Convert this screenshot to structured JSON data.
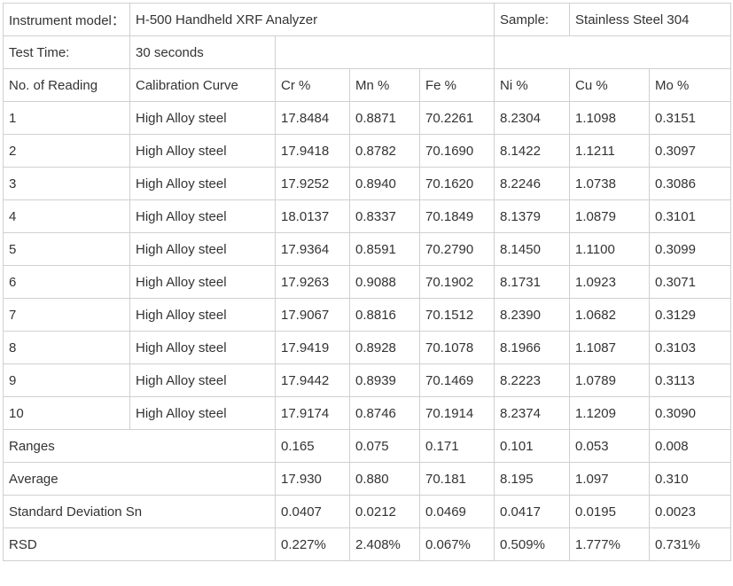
{
  "header": {
    "instrument_label": "Instrument model：",
    "instrument_value": "H-500 Handheld XRF Analyzer",
    "sample_label": "Sample:",
    "sample_value": "Stainless Steel 304",
    "test_time_label": "Test Time:",
    "test_time_value": "30 seconds"
  },
  "columns": [
    "No. of Reading",
    "Calibration Curve",
    "Cr %",
    "Mn %",
    "Fe %",
    "Ni %",
    "Cu %",
    "Mo %"
  ],
  "rows": [
    [
      "1",
      "High Alloy steel",
      "17.8484",
      "0.8871",
      "70.2261",
      "8.2304",
      "1.1098",
      "0.3151"
    ],
    [
      "2",
      "High Alloy steel",
      "17.9418",
      "0.8782",
      "70.1690",
      "8.1422",
      "1.1211",
      "0.3097"
    ],
    [
      "3",
      "High Alloy steel",
      "17.9252",
      "0.8940",
      "70.1620",
      "8.2246",
      "1.0738",
      "0.3086"
    ],
    [
      "4",
      "High Alloy steel",
      "18.0137",
      "0.8337",
      "70.1849",
      "8.1379",
      "1.0879",
      "0.3101"
    ],
    [
      "5",
      "High Alloy steel",
      "17.9364",
      "0.8591",
      "70.2790",
      "8.1450",
      "1.1100",
      "0.3099"
    ],
    [
      "6",
      "High Alloy steel",
      "17.9263",
      "0.9088",
      "70.1902",
      "8.1731",
      "1.0923",
      "0.3071"
    ],
    [
      "7",
      "High Alloy steel",
      "17.9067",
      "0.8816",
      "70.1512",
      "8.2390",
      "1.0682",
      "0.3129"
    ],
    [
      "8",
      "High Alloy steel",
      "17.9419",
      "0.8928",
      "70.1078",
      "8.1966",
      "1.1087",
      "0.3103"
    ],
    [
      "9",
      "High Alloy steel",
      "17.9442",
      "0.8939",
      "70.1469",
      "8.2223",
      "1.0789",
      "0.3113"
    ],
    [
      "10",
      "High Alloy steel",
      "17.9174",
      "0.8746",
      "70.1914",
      "8.2374",
      "1.1209",
      "0.3090"
    ]
  ],
  "summary": [
    {
      "label": "Ranges",
      "values": [
        "0.165",
        "0.075",
        "0.171",
        "0.101",
        "0.053",
        "0.008"
      ]
    },
    {
      "label": "Average",
      "values": [
        "17.930",
        "0.880",
        "70.181",
        "8.195",
        "1.097",
        "0.310"
      ]
    },
    {
      "label": "Standard Deviation Sn",
      "values": [
        "0.0407",
        "0.0212",
        "0.0469",
        "0.0417",
        "0.0195",
        "0.0023"
      ]
    },
    {
      "label": "RSD",
      "values": [
        "0.227%",
        "2.408%",
        "0.067%",
        "0.509%",
        "1.777%",
        "0.731%"
      ]
    }
  ],
  "colors": {
    "text": "#333333",
    "border": "#d0d0d0",
    "background": "#ffffff"
  }
}
